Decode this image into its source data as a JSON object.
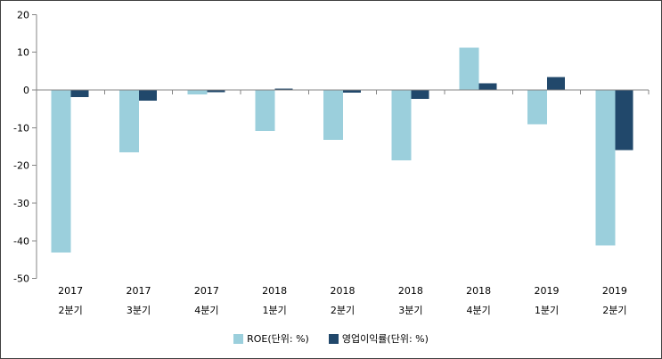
{
  "chart_data": {
    "type": "bar",
    "title": "",
    "categories": [
      "2017 2분기",
      "2017 3분기",
      "2017 4분기",
      "2018 1분기",
      "2018 2분기",
      "2018 3분기",
      "2018 4분기",
      "2019 1분기",
      "2019 2분기"
    ],
    "series": [
      {
        "name": "ROE(단위: %)",
        "color": "#9BCFDC",
        "values": [
          -43.1,
          -16.6,
          -1.2,
          -10.9,
          -13.2,
          -18.7,
          11.2,
          -9.1,
          -41.2
        ]
      },
      {
        "name": "영업이익률(단위: %)",
        "color": "#21486B",
        "values": [
          -1.9,
          -2.8,
          -0.6,
          0.4,
          -0.7,
          -2.4,
          1.8,
          3.4,
          -15.9
        ]
      }
    ],
    "ylim": [
      -50,
      20
    ],
    "ytick_step": 10,
    "yticks": [
      20,
      10,
      0,
      -10,
      -20,
      -30,
      -40,
      -50
    ],
    "grid": false,
    "legend_position": "bottom",
    "axis_color": "#858585",
    "text_color": "#000000"
  }
}
